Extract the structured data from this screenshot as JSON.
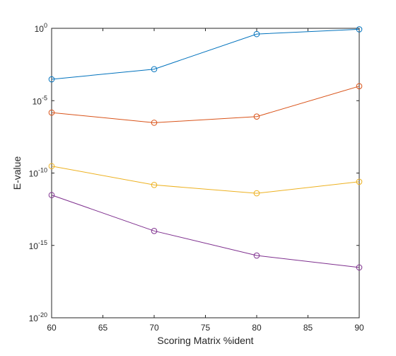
{
  "chart_data": {
    "type": "line",
    "title": "",
    "xlabel": "Scoring Matrix %ident",
    "ylabel": "E-value",
    "yscale": "log",
    "xlim": [
      60,
      90
    ],
    "ylim": [
      1e-20,
      1
    ],
    "grid": false,
    "legend": "none",
    "x": [
      60,
      70,
      80,
      90
    ],
    "x_ticks": [
      60,
      65,
      70,
      75,
      80,
      85,
      90
    ],
    "y_ticks": [
      {
        "exp": -20,
        "base": "10",
        "sup": "-20"
      },
      {
        "exp": -15,
        "base": "10",
        "sup": "-15"
      },
      {
        "exp": -10,
        "base": "10",
        "sup": "-10"
      },
      {
        "exp": -5,
        "base": "10",
        "sup": "-5"
      },
      {
        "exp": 0,
        "base": "10",
        "sup": "0"
      }
    ],
    "series": [
      {
        "color": "#0072BD",
        "values": [
          0.0003,
          0.0015,
          0.4,
          0.85
        ]
      },
      {
        "color": "#D95319",
        "values": [
          1.5e-06,
          3e-07,
          8e-07,
          0.0001
        ]
      },
      {
        "color": "#EDB120",
        "values": [
          3e-10,
          1.5e-11,
          4e-12,
          2.5e-11
        ]
      },
      {
        "color": "#7E2F8E",
        "values": [
          3e-12,
          1e-14,
          2e-16,
          3e-17
        ]
      }
    ]
  }
}
